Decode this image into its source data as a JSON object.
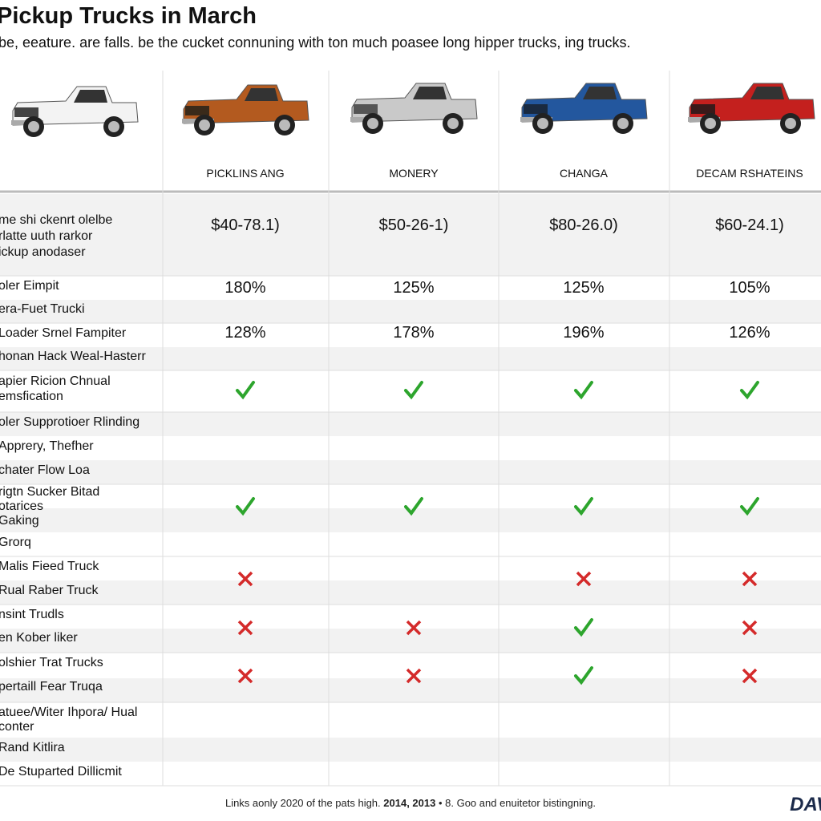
{
  "header": {
    "title": "Pickup Trucks in March",
    "subtitle": "be, eeature. are falls. be the cucket connuning with ton much poasee long hipper trucks, ing trucks."
  },
  "columns": [
    "PICKLINS ANG",
    "MONERY",
    "CHANGA",
    "DECAM RSHATEINS"
  ],
  "rows": [
    {
      "labels": [
        "me shi ckenrt olelbe",
        "rlatte uuth rarkor",
        "ickup anodaser"
      ],
      "cells": [
        "$40-78.1)",
        "$50-26-1)",
        "$80-26.0)",
        "$60-24.1)"
      ]
    },
    {
      "labels": [
        "oler Eimpit",
        "era-Fuet Trucki"
      ],
      "cells": [
        "180%",
        "125%",
        "125%",
        "105%"
      ]
    },
    {
      "labels": [
        "Loader Srnel Fampiter",
        "honan Hack Weal-Hasterr"
      ],
      "cells": [
        "128%",
        "178%",
        "196%",
        "126%"
      ]
    },
    {
      "labels": [
        "apier Ricion Chnual",
        "emsfication"
      ]
    },
    {
      "labels": [
        "oler Supprotioer Rlinding"
      ]
    },
    {
      "labels": [
        "Apprery, Thefher"
      ]
    },
    {
      "labels": [
        "chater Flow Loa"
      ]
    },
    {
      "labels": [
        "rigtn Sucker Bitad",
        "otarices",
        "Gaking"
      ]
    },
    {
      "labels": [
        "Grorq"
      ]
    },
    {
      "labels": [
        "Malis Fieed Truck",
        "Rual Raber Truck"
      ]
    },
    {
      "labels": [
        "nsint Trudls",
        "en Kober liker"
      ]
    },
    {
      "labels": [
        "olshier Trat Trucks",
        "pertaill Fear Truqa"
      ]
    },
    {
      "labels": [
        "atuee/Witer Ihpora/ Hual",
        "conter",
        "Rand Kitlira",
        "De Stuparted Dillicmit"
      ]
    }
  ],
  "footer": {
    "parts": [
      "Links aonly 2020 of the pats high. ",
      "2014, 2013",
      " • 8. Goo and enuitetor bistingning."
    ],
    "logo": "DAV"
  }
}
